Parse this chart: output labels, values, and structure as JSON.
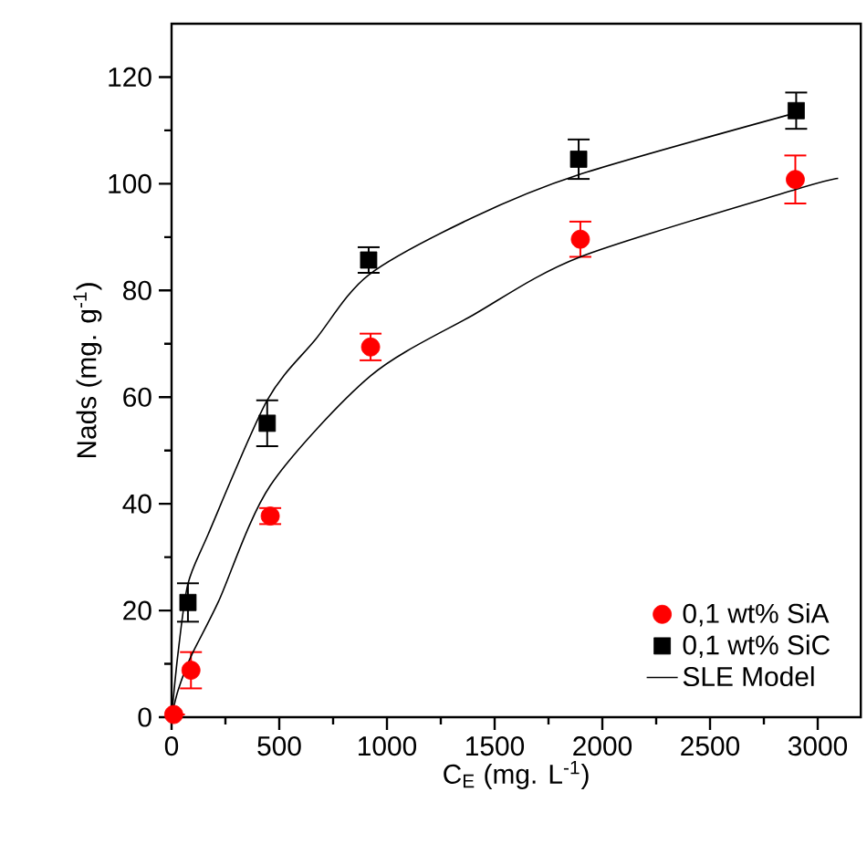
{
  "chart_data": {
    "type": "scatter",
    "xlabel": "C$_{E}$ (mg. L$^{-1}$)",
    "ylabel": "Nads (mg. g$^{-1}$)",
    "xlim": [
      0,
      3200
    ],
    "ylim": [
      0,
      130
    ],
    "xticks": [
      0,
      500,
      1000,
      1500,
      2000,
      2500,
      3000
    ],
    "yticks": [
      0,
      20,
      40,
      60,
      80,
      100,
      120
    ],
    "grid": false,
    "legend": "bottom right",
    "series": [
      {
        "name": "0,1 wt% SiA",
        "color": "#ff0000",
        "marker": "circle",
        "x": [
          10,
          90,
          458,
          924,
          1898,
          2896
        ],
        "values": [
          0.5,
          8.8,
          37.7,
          69.4,
          89.6,
          100.8
        ],
        "errors": [
          null,
          3.4,
          1.5,
          2.5,
          3.3,
          4.5
        ]
      },
      {
        "name": "0,1 wt% SiC",
        "color": "#000000",
        "marker": "square",
        "x": [
          76,
          444,
          915,
          1890,
          2900
        ],
        "values": [
          21.5,
          55.1,
          85.7,
          104.6,
          113.7
        ],
        "errors": [
          3.6,
          4.3,
          2.4,
          3.7,
          3.4
        ]
      },
      {
        "name": "SLE Model",
        "type": "line",
        "color": "#000000",
        "line_style": "solid",
        "x": [
          0,
          30,
          76,
          170,
          444,
          670,
          915,
          1400,
          1890,
          2900
        ],
        "values": [
          0,
          12,
          25,
          34.3,
          59.4,
          70.9,
          82.9,
          93.7,
          101.7,
          113.3
        ]
      },
      {
        "type": "line",
        "color": "#000000",
        "line_style": "solid",
        "x": [
          0,
          30,
          90,
          218,
          458,
          924,
          1400,
          1898,
          2896,
          3095
        ],
        "values": [
          0,
          5,
          11.4,
          21.7,
          43.4,
          64,
          75.4,
          86.3,
          98.9,
          101
        ]
      }
    ]
  }
}
